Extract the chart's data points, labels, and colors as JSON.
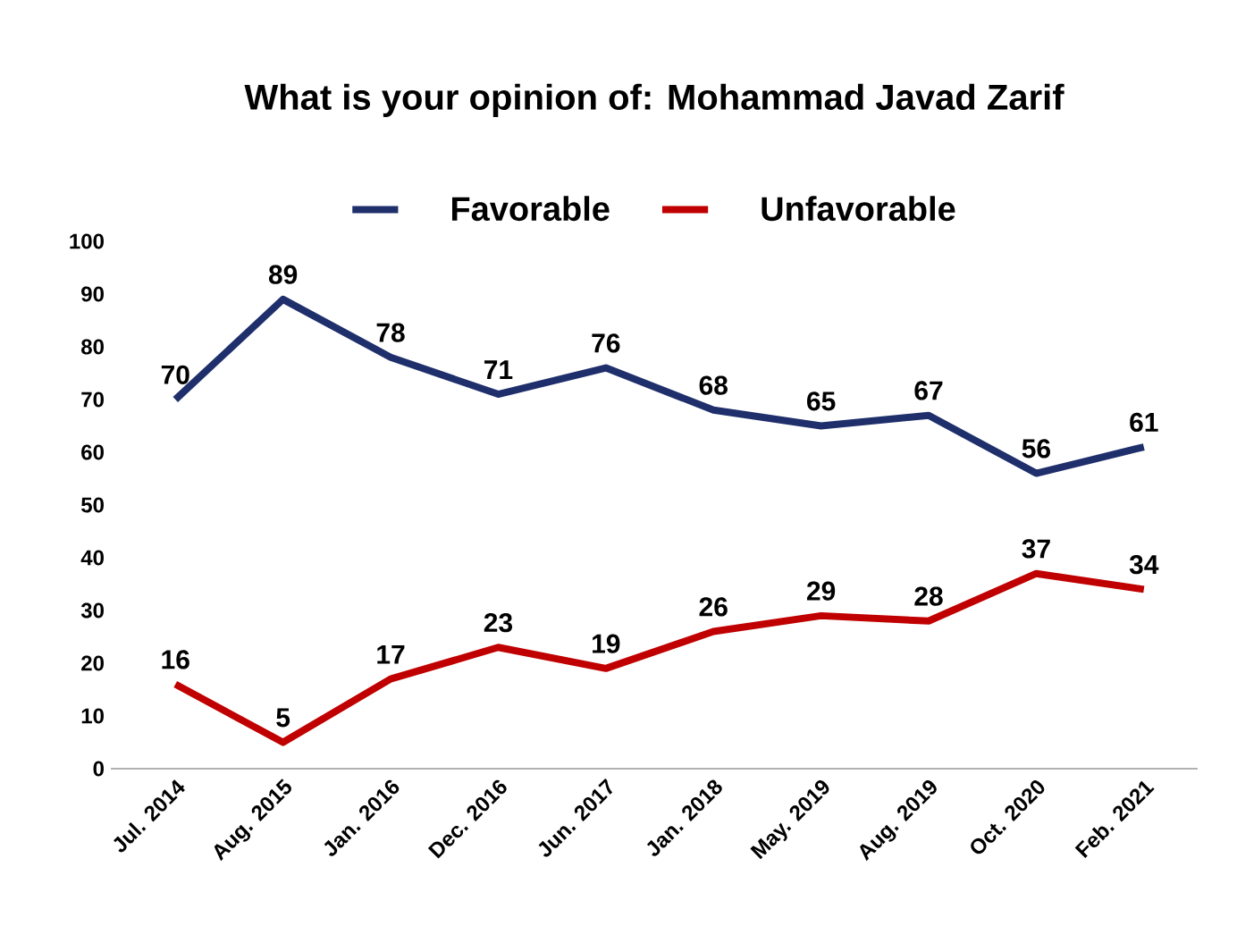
{
  "chart_data": {
    "type": "line",
    "title": "What is your opinion of: Mohammad Javad Zarif",
    "categories": [
      "Jul. 2014",
      "Aug. 2015",
      "Jan. 2016",
      "Dec. 2016",
      "Jun. 2017",
      "Jan. 2018",
      "May. 2019",
      "Aug. 2019",
      "Oct. 2020",
      "Feb. 2021"
    ],
    "series": [
      {
        "name": "Favorable",
        "color": "#1f2f6b",
        "values": [
          70,
          89,
          78,
          71,
          76,
          68,
          65,
          67,
          56,
          61
        ]
      },
      {
        "name": "Unfavorable",
        "color": "#c00000",
        "values": [
          16,
          5,
          17,
          23,
          19,
          26,
          29,
          28,
          37,
          34
        ]
      }
    ],
    "ylim": [
      0,
      100
    ],
    "yticks": [
      0,
      10,
      20,
      30,
      40,
      50,
      60,
      70,
      80,
      90,
      100
    ],
    "legend": "top",
    "data_labels": true
  }
}
